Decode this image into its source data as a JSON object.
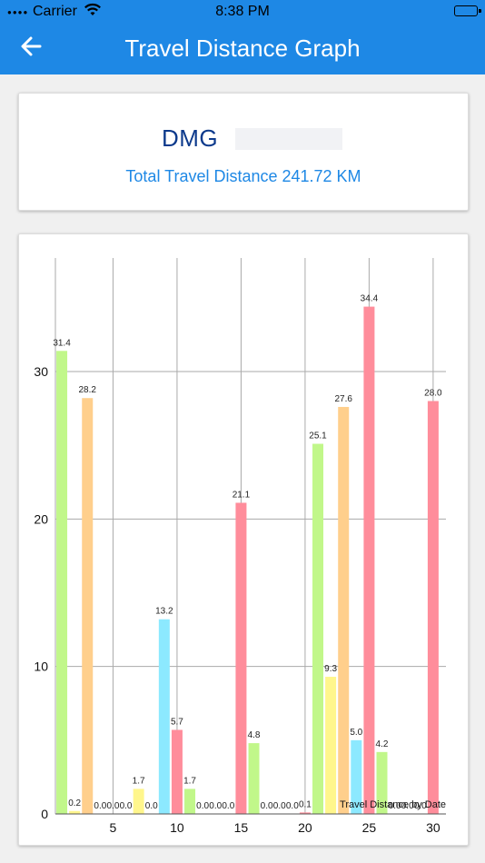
{
  "status_bar": {
    "carrier": "Carrier",
    "time": "8:38 PM"
  },
  "nav": {
    "title": "Travel Distance Graph"
  },
  "info": {
    "vehicle_id": "DMG",
    "total_distance": "Total Travel Distance 241.72 KM"
  },
  "chart_data": {
    "type": "bar",
    "title": "",
    "xlabel": "",
    "ylabel": "",
    "x": [
      1,
      2,
      3,
      4,
      5,
      6,
      7,
      8,
      9,
      10,
      11,
      12,
      13,
      14,
      15,
      16,
      17,
      18,
      19,
      20,
      21,
      22,
      23,
      24,
      25,
      26,
      27,
      28,
      29,
      30
    ],
    "values": [
      31.4,
      0.2,
      28.2,
      0.0,
      0.0,
      0.0,
      1.7,
      0.0,
      13.2,
      5.7,
      1.7,
      0.0,
      0.0,
      0.0,
      21.1,
      4.8,
      0.0,
      0.0,
      0.0,
      0.1,
      25.1,
      9.3,
      27.6,
      5.0,
      34.4,
      4.2,
      0.0,
      0.0,
      0.0,
      28.0
    ],
    "value_labels": [
      "31.4",
      "0.2",
      "28.2",
      "0.0",
      "0.0",
      "0.0",
      "1.7",
      "0.0",
      "13.2",
      "5.7",
      "1.7",
      "0.0",
      "0.0",
      "0.0",
      "21.1",
      "4.8",
      "0.0",
      "0.0",
      "0.0",
      "0.1",
      "25.1",
      "9.3",
      "27.6",
      "5.0",
      "34.4",
      "4.2",
      "0.0",
      "0.0",
      "0.0",
      "28.0"
    ],
    "colors": [
      "#c1f78a",
      "#fff68c",
      "#ffcf8c",
      "#8ce9ff",
      "#ff8d9b"
    ],
    "x_ticks": [
      "5",
      "10",
      "15",
      "20",
      "25",
      "30"
    ],
    "x_tick_values": [
      5,
      10,
      15,
      20,
      25,
      30
    ],
    "y_ticks": [
      "0",
      "10",
      "20",
      "30"
    ],
    "y_tick_values": [
      0,
      10,
      20,
      30
    ],
    "xlim": [
      0.5,
      31
    ],
    "ylim": [
      0,
      37.7
    ],
    "legend": [
      "Travel Distance by Date"
    ],
    "legend_position": "bottom-right",
    "grid": true
  }
}
